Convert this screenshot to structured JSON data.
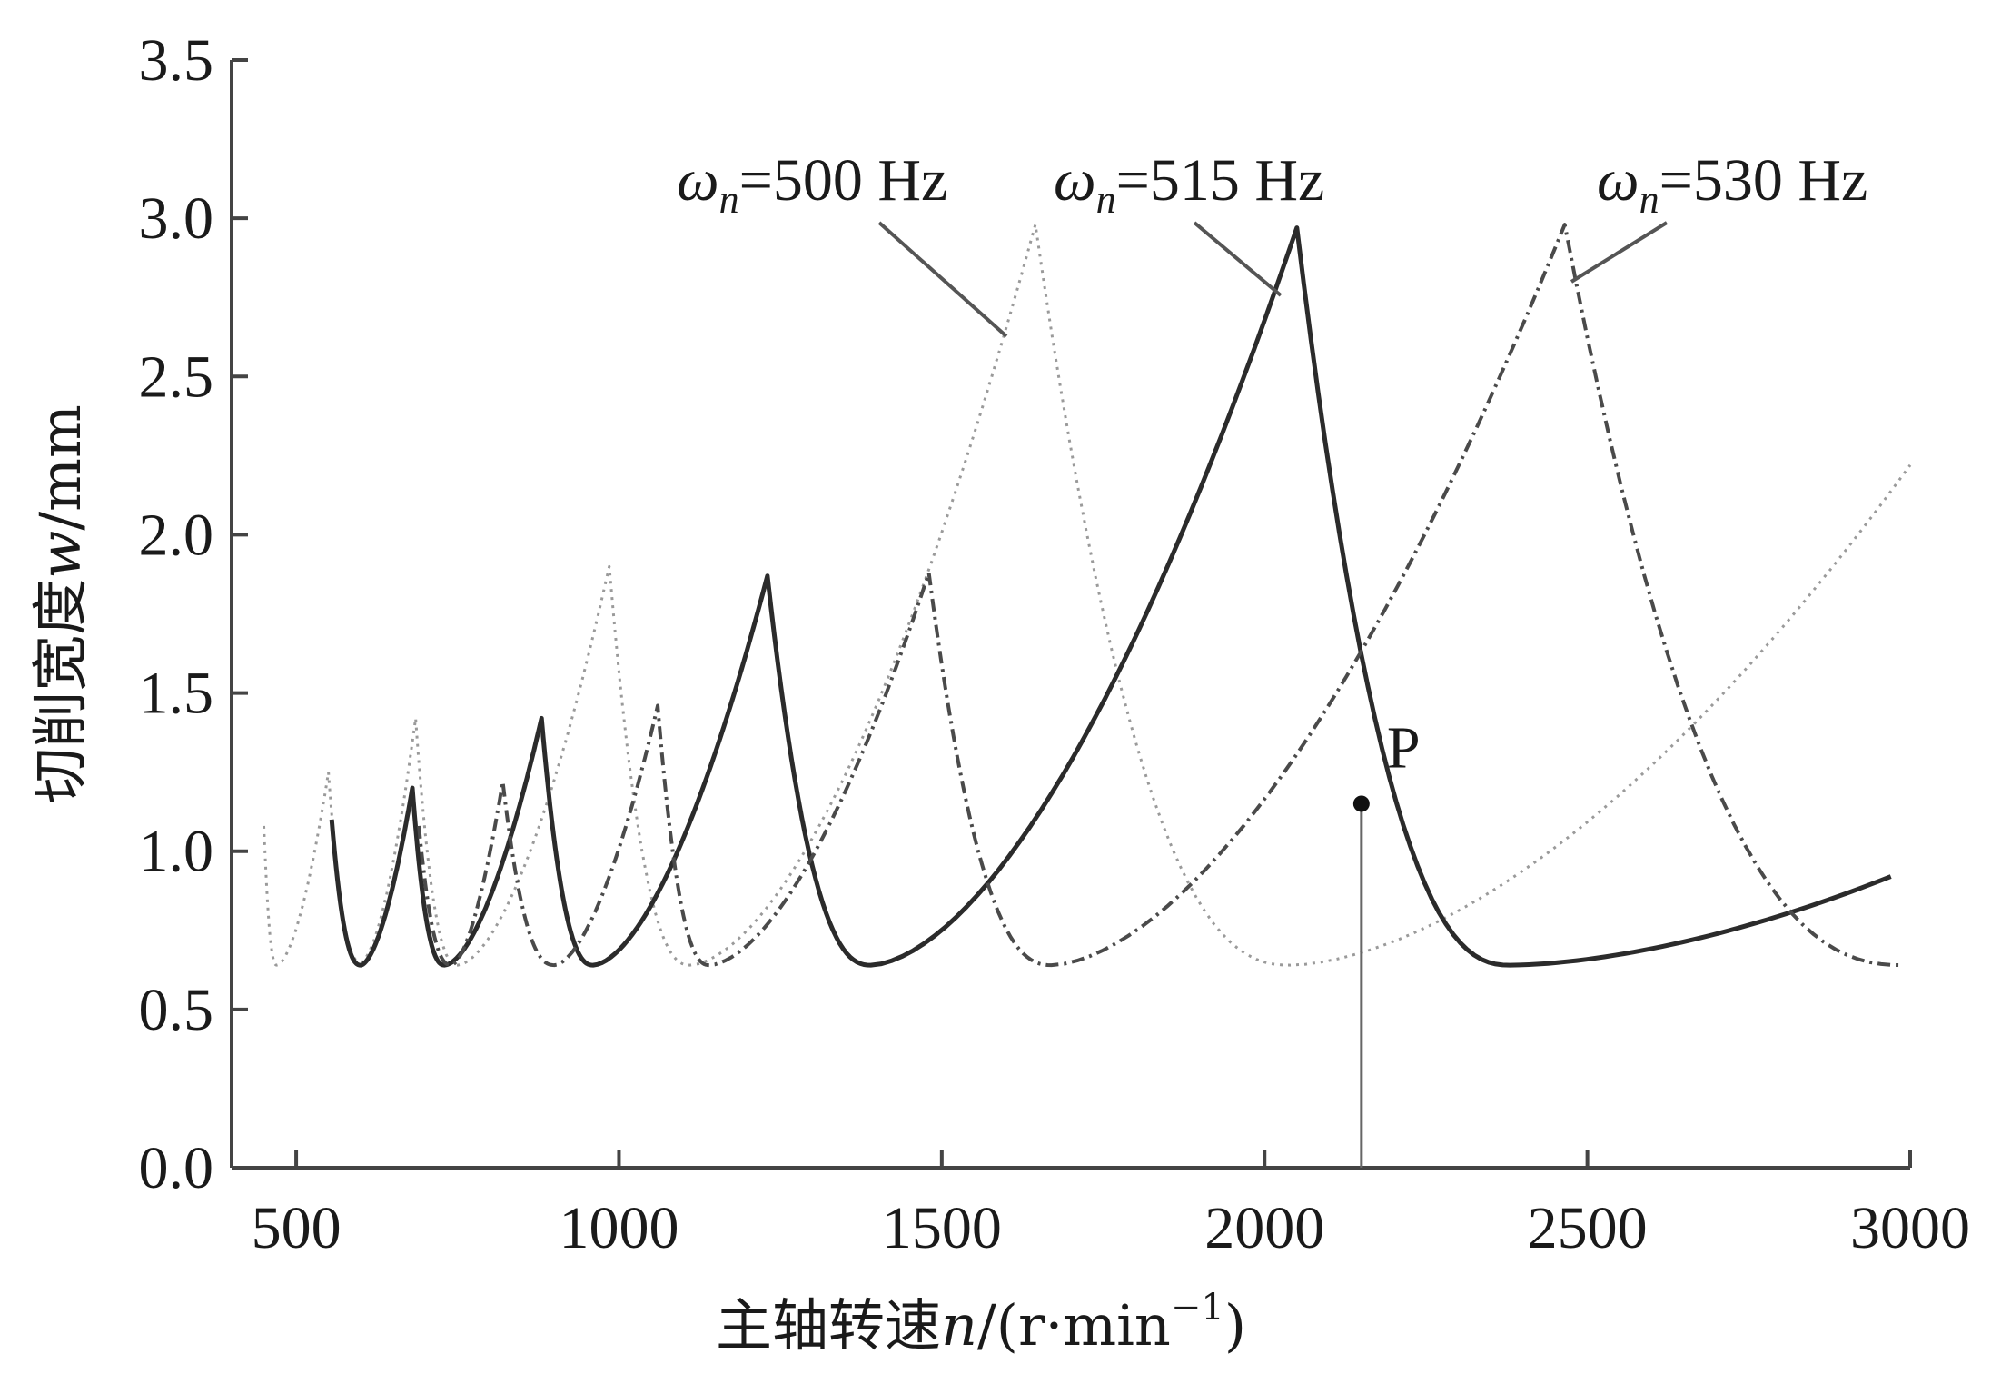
{
  "chart_data": {
    "type": "line",
    "xlabel": "主轴转速n/(r·min⁻¹)",
    "xlabel_parts": {
      "main": "主轴转速",
      "var": "n",
      "unit_pre": "/(r·min",
      "sup": "−1",
      "unit_post": ")"
    },
    "ylabel": "切削宽度w/mm",
    "ylabel_parts": {
      "main": "切削宽度",
      "var": "w",
      "unit": "/mm"
    },
    "xlim": [
      400,
      3000
    ],
    "ylim": [
      0,
      3.5
    ],
    "xticks": [
      "500",
      "1000",
      "1500",
      "2000",
      "2500",
      "3000"
    ],
    "yticks": [
      "0.0",
      "0.5",
      "1.0",
      "1.5",
      "2.0",
      "2.5",
      "3.0",
      "3.5"
    ],
    "grid": false,
    "series": [
      {
        "name": "ωn=500 Hz",
        "name_parts": {
          "sym": "ω",
          "sub": "n",
          "rest": "=500 Hz"
        },
        "style": "dotted",
        "color": "#9a9a9a",
        "stroke_width": 3,
        "lobes": [
          {
            "start": [
              450,
              1.08
            ],
            "min": [
              470,
              0.64
            ],
            "peak": [
              550,
              1.25
            ]
          },
          {
            "min": [
              600,
              0.65
            ],
            "peak": [
              685,
              1.42
            ]
          },
          {
            "min": [
              750,
              0.64
            ],
            "peak": [
              985,
              1.9
            ]
          },
          {
            "min": [
              1110,
              0.64
            ],
            "peak": [
              1645,
              2.98
            ]
          },
          {
            "min": [
              2040,
              0.64
            ],
            "end": [
              3000,
              2.22
            ]
          }
        ]
      },
      {
        "name": "ωn=515 Hz",
        "name_parts": {
          "sym": "ω",
          "sub": "n",
          "rest": "=515 Hz"
        },
        "style": "solid",
        "color": "#2b2b2b",
        "stroke_width": 5,
        "lobes": [
          {
            "start": [
              555,
              1.1
            ],
            "min": [
              600,
              0.64
            ],
            "peak": [
              680,
              1.2
            ]
          },
          {
            "min": [
              730,
              0.64
            ],
            "peak": [
              880,
              1.42
            ]
          },
          {
            "min": [
              960,
              0.64
            ],
            "peak": [
              1230,
              1.87
            ]
          },
          {
            "min": [
              1390,
              0.64
            ],
            "peak": [
              2050,
              2.97
            ]
          },
          {
            "min": [
              2380,
              0.64
            ],
            "end": [
              2970,
              0.92
            ]
          }
        ]
      },
      {
        "name": "ωn=530 Hz",
        "name_parts": {
          "sym": "ω",
          "sub": "n",
          "rest": "=530 Hz"
        },
        "style": "dashdot",
        "color": "#4a4a4a",
        "stroke_width": 4,
        "lobes": [
          {
            "start": [
              690,
              1.08
            ],
            "min": [
              740,
              0.64
            ],
            "peak": [
              820,
              1.22
            ]
          },
          {
            "min": [
              900,
              0.64
            ],
            "peak": [
              1060,
              1.46
            ]
          },
          {
            "min": [
              1140,
              0.64
            ],
            "peak": [
              1480,
              1.88
            ]
          },
          {
            "min": [
              1670,
              0.64
            ],
            "peak": [
              2465,
              2.98
            ]
          },
          {
            "min": [
              2990,
              0.64
            ]
          }
        ]
      }
    ],
    "annotations": [
      {
        "label": "P",
        "x": 2150,
        "y": 1.15,
        "kind": "point-with-vertical-line"
      }
    ]
  }
}
